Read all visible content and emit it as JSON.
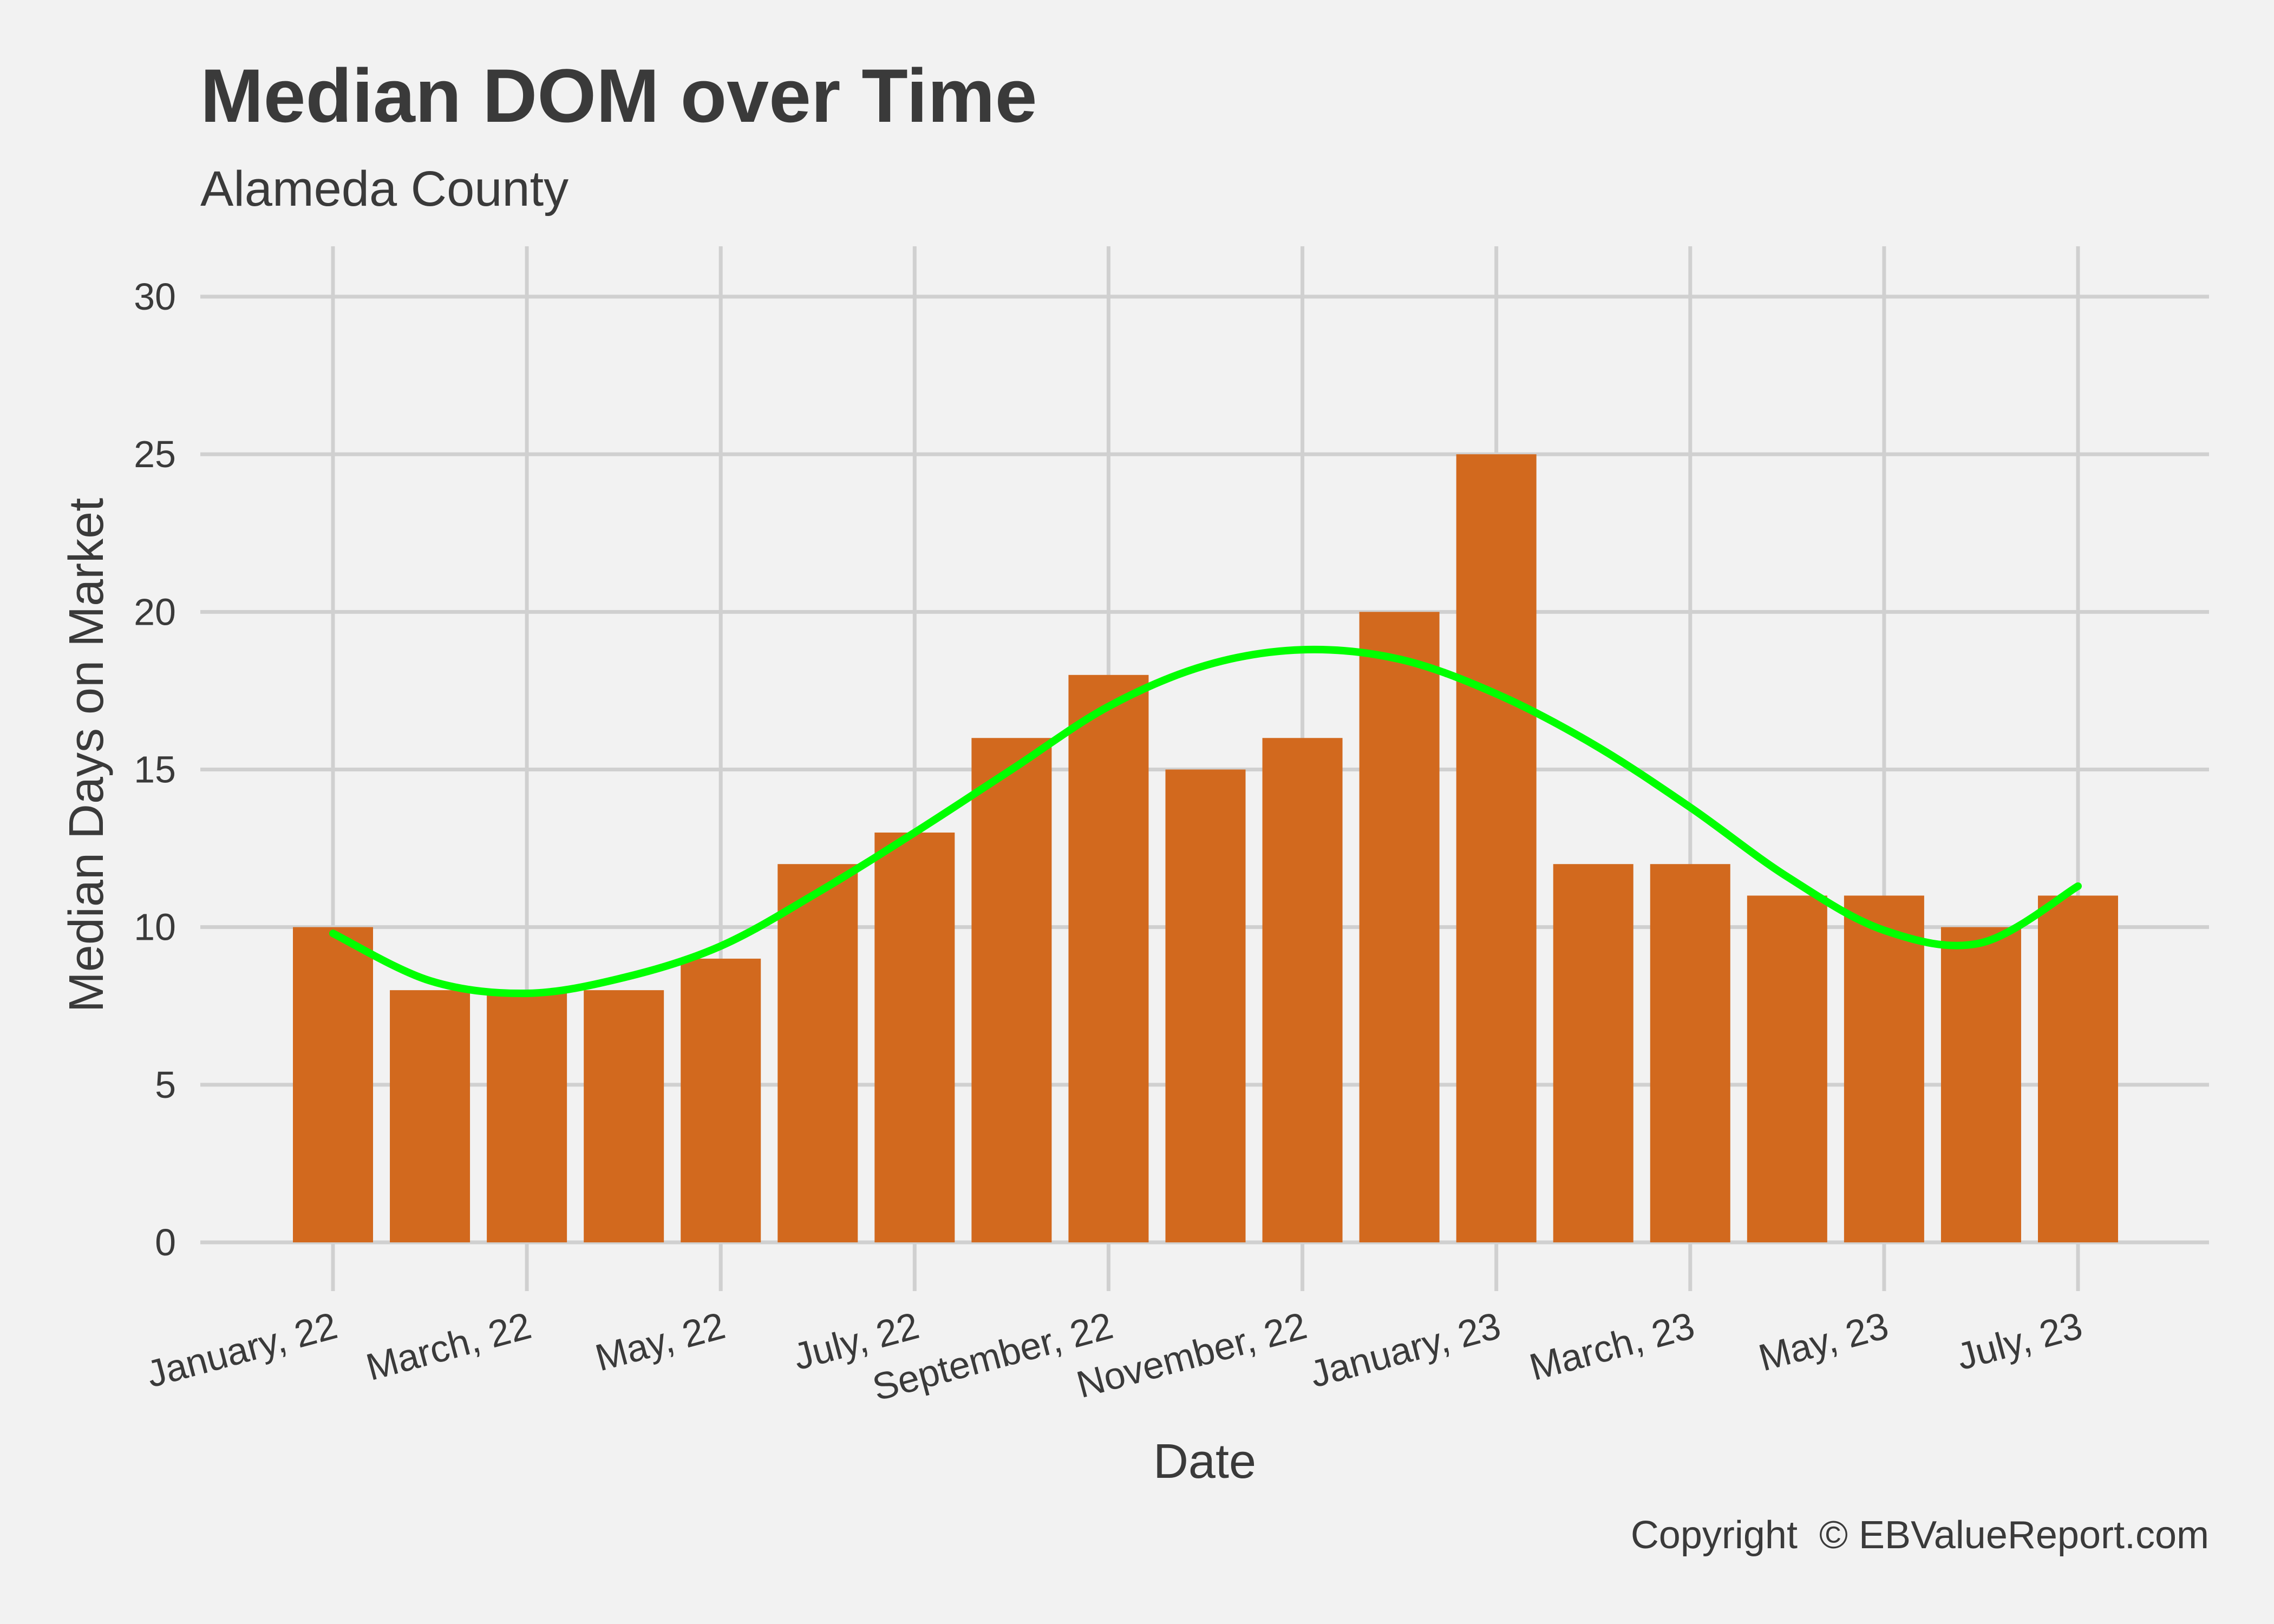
{
  "chart_data": {
    "type": "bar",
    "title": "Median DOM over Time",
    "subtitle": "Alameda County",
    "xlabel": "Date",
    "ylabel": "Median Days on Market",
    "caption": "Copyright  © EBValueReport.com",
    "x": [
      "2022-01",
      "2022-02",
      "2022-03",
      "2022-04",
      "2022-05",
      "2022-06",
      "2022-07",
      "2022-08",
      "2022-09",
      "2022-10",
      "2022-11",
      "2022-12",
      "2023-01",
      "2023-02",
      "2023-03",
      "2023-04",
      "2023-05",
      "2023-06",
      "2023-07"
    ],
    "values": [
      10,
      8,
      8,
      8,
      9,
      12,
      13,
      16,
      18,
      15,
      16,
      20,
      25,
      12,
      12,
      11,
      11,
      10,
      11
    ],
    "x_ticks": [
      {
        "x": "2022-01",
        "label": "January, 22"
      },
      {
        "x": "2022-03",
        "label": "March, 22"
      },
      {
        "x": "2022-05",
        "label": "May, 22"
      },
      {
        "x": "2022-07",
        "label": "July, 22"
      },
      {
        "x": "2022-09",
        "label": "September, 22"
      },
      {
        "x": "2022-11",
        "label": "November, 22"
      },
      {
        "x": "2023-01",
        "label": "January, 23"
      },
      {
        "x": "2023-03",
        "label": "March, 23"
      },
      {
        "x": "2023-05",
        "label": "May, 23"
      },
      {
        "x": "2023-07",
        "label": "July, 23"
      }
    ],
    "y_ticks": [
      0,
      5,
      10,
      15,
      20,
      25,
      30
    ],
    "ylim": [
      0,
      30
    ],
    "trend": {
      "x": [
        "2022-01",
        "2022-02",
        "2022-03",
        "2022-04",
        "2022-05",
        "2022-06",
        "2022-07",
        "2022-08",
        "2022-09",
        "2022-10",
        "2022-11",
        "2022-12",
        "2023-01",
        "2023-02",
        "2023-03",
        "2023-04",
        "2023-05",
        "2023-06",
        "2023-07"
      ],
      "values": [
        9.8,
        8.3,
        7.9,
        8.4,
        9.4,
        11.1,
        13.0,
        15.0,
        17.0,
        18.3,
        18.8,
        18.5,
        17.4,
        15.8,
        13.8,
        11.6,
        9.9,
        9.5,
        11.3
      ]
    },
    "colors": {
      "bar": "#d2691e",
      "trend": "#00ff00",
      "grid": "#d0d0d0",
      "background": "#f2f2f2"
    },
    "grid": true
  }
}
